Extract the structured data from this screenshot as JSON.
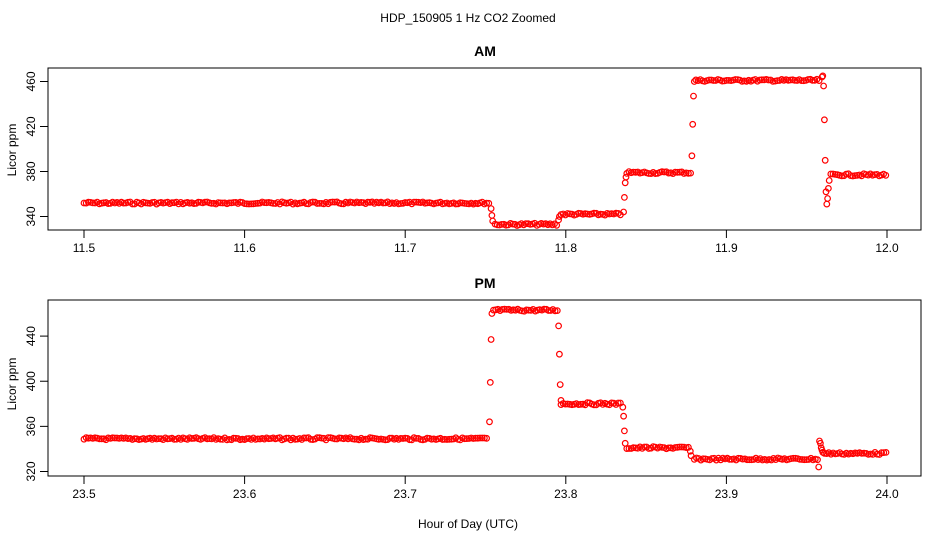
{
  "figure_title": "HDP_150905  1 Hz CO2 Zoomed",
  "xlabel": "Hour of Day (UTC)",
  "chart_data": [
    {
      "type": "scatter",
      "title": "AM",
      "ylabel": "Licor ppm",
      "xlim": [
        11.5,
        12.0
      ],
      "ylim": [
        328,
        472
      ],
      "x_ticks": [
        "11.5",
        "11.6",
        "11.7",
        "11.8",
        "11.9",
        "12.0"
      ],
      "y_ticks": [
        "340",
        "380",
        "420",
        "460"
      ],
      "marker_color": "#ff0000",
      "segments": [
        {
          "x_start": 11.5,
          "x_end": 11.753,
          "y": 352
        },
        {
          "x_start": 11.756,
          "x_end": 11.795,
          "y": 333
        },
        {
          "x_start": 11.797,
          "x_end": 11.835,
          "y": 342
        },
        {
          "x_start": 11.838,
          "x_end": 11.878,
          "y": 379
        },
        {
          "x_start": 11.881,
          "x_end": 11.959,
          "y": 461
        },
        {
          "x_start": 11.965,
          "x_end": 12.0,
          "y": 377
        }
      ],
      "transitions": [
        {
          "x": 11.7535,
          "y": 347
        },
        {
          "x": 11.754,
          "y": 341
        },
        {
          "x": 11.7545,
          "y": 336
        },
        {
          "x": 11.7955,
          "y": 337
        },
        {
          "x": 11.796,
          "y": 340
        },
        {
          "x": 11.836,
          "y": 344
        },
        {
          "x": 11.8365,
          "y": 357
        },
        {
          "x": 11.837,
          "y": 370
        },
        {
          "x": 11.8375,
          "y": 375
        },
        {
          "x": 11.8785,
          "y": 394
        },
        {
          "x": 11.879,
          "y": 422
        },
        {
          "x": 11.8795,
          "y": 447
        },
        {
          "x": 11.88,
          "y": 460
        },
        {
          "x": 11.9595,
          "y": 464
        },
        {
          "x": 11.96,
          "y": 465
        },
        {
          "x": 11.9605,
          "y": 456
        },
        {
          "x": 11.961,
          "y": 426
        },
        {
          "x": 11.9615,
          "y": 390
        },
        {
          "x": 11.962,
          "y": 362
        },
        {
          "x": 11.9625,
          "y": 351
        },
        {
          "x": 11.963,
          "y": 356
        },
        {
          "x": 11.9635,
          "y": 365
        },
        {
          "x": 11.964,
          "y": 372
        }
      ]
    },
    {
      "type": "scatter",
      "title": "PM",
      "ylabel": "Licor ppm",
      "xlim": [
        23.5,
        24.0
      ],
      "ylim": [
        316,
        472
      ],
      "x_ticks": [
        "23.5",
        "23.6",
        "23.7",
        "23.8",
        "23.9",
        "24.0"
      ],
      "y_ticks": [
        "320",
        "360",
        "400",
        "440"
      ],
      "marker_color": "#ff0000",
      "segments": [
        {
          "x_start": 23.5,
          "x_end": 23.752,
          "y": 349
        },
        {
          "x_start": 23.755,
          "x_end": 23.795,
          "y": 463
        },
        {
          "x_start": 23.797,
          "x_end": 23.835,
          "y": 380
        },
        {
          "x_start": 23.838,
          "x_end": 23.877,
          "y": 341
        },
        {
          "x_start": 23.88,
          "x_end": 23.957,
          "y": 331
        },
        {
          "x_start": 23.961,
          "x_end": 24.0,
          "y": 336
        }
      ],
      "transitions": [
        {
          "x": 23.7525,
          "y": 364
        },
        {
          "x": 23.753,
          "y": 399
        },
        {
          "x": 23.7535,
          "y": 437
        },
        {
          "x": 23.754,
          "y": 460
        },
        {
          "x": 23.7955,
          "y": 449
        },
        {
          "x": 23.796,
          "y": 424
        },
        {
          "x": 23.7965,
          "y": 397
        },
        {
          "x": 23.797,
          "y": 383
        },
        {
          "x": 23.8355,
          "y": 377
        },
        {
          "x": 23.836,
          "y": 369
        },
        {
          "x": 23.8365,
          "y": 356
        },
        {
          "x": 23.837,
          "y": 345
        },
        {
          "x": 23.8775,
          "y": 338
        },
        {
          "x": 23.878,
          "y": 334
        },
        {
          "x": 23.9575,
          "y": 324
        },
        {
          "x": 23.958,
          "y": 347
        },
        {
          "x": 23.9585,
          "y": 345
        },
        {
          "x": 23.959,
          "y": 341
        },
        {
          "x": 23.9595,
          "y": 339
        },
        {
          "x": 23.96,
          "y": 337
        }
      ]
    }
  ]
}
